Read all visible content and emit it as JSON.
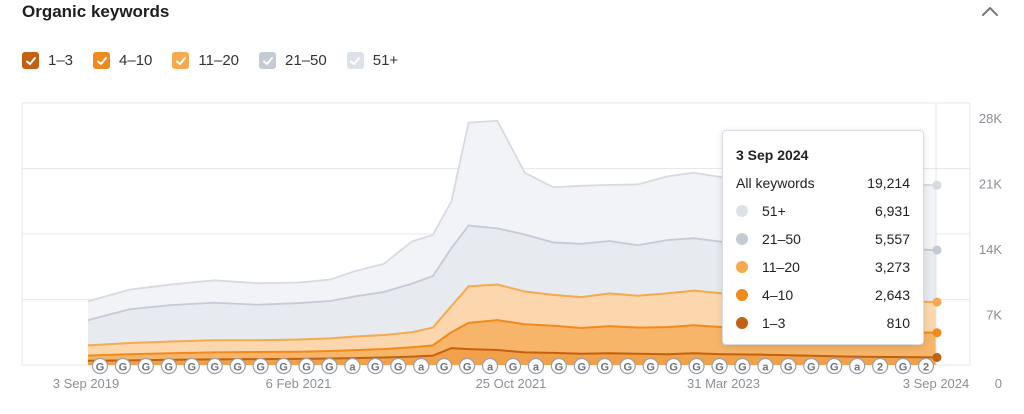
{
  "header": {
    "title": "Organic keywords"
  },
  "icons": {
    "collapse": "chevron-up-icon",
    "check": "check-icon"
  },
  "legend": [
    {
      "label": "1–3",
      "color": "#c2610f"
    },
    {
      "label": "4–10",
      "color": "#f18a1c"
    },
    {
      "label": "11–20",
      "color": "#f6a94e"
    },
    {
      "label": "21–50",
      "color": "#c4cbd5"
    },
    {
      "label": "51+",
      "color": "#dde2e8"
    }
  ],
  "tooltip": {
    "date": "3 Sep 2024",
    "total_label": "All keywords",
    "total_value": "19,214",
    "rows": [
      {
        "label": "51+",
        "value": "6,931",
        "color": "#dde2e8"
      },
      {
        "label": "21–50",
        "value": "5,557",
        "color": "#c4cbd5"
      },
      {
        "label": "11–20",
        "value": "3,273",
        "color": "#f6a94e"
      },
      {
        "label": "4–10",
        "value": "2,643",
        "color": "#f18a1c"
      },
      {
        "label": "1–3",
        "value": "810",
        "color": "#c2610f"
      }
    ]
  },
  "chart_data": {
    "type": "area",
    "stacked": true,
    "x_ticks": [
      "3 Sep 2019",
      "6 Feb 2021",
      "25 Oct 2021",
      "31 Mar 2023",
      "3 Sep 2024"
    ],
    "y_ticks": [
      "0",
      "7K",
      "14K",
      "21K",
      "28K"
    ],
    "ylim": [
      0,
      28000
    ],
    "grid": true,
    "x": [
      "2019-09-03",
      "2019-12-01",
      "2020-03-01",
      "2020-06-01",
      "2020-09-01",
      "2020-12-01",
      "2021-02-06",
      "2021-04-01",
      "2021-06-01",
      "2021-08-01",
      "2021-09-15",
      "2021-10-25",
      "2021-12-01",
      "2022-02-01",
      "2022-04-01",
      "2022-06-01",
      "2022-08-01",
      "2022-10-01",
      "2022-12-01",
      "2023-02-01",
      "2023-03-31",
      "2023-06-01",
      "2023-09-01",
      "2023-12-01",
      "2024-03-01",
      "2024-06-01",
      "2024-09-03"
    ],
    "series": [
      {
        "name": "1–3",
        "color": "#c2610f",
        "values": [
          450,
          500,
          560,
          600,
          630,
          650,
          690,
          740,
          800,
          900,
          1000,
          1800,
          1700,
          1600,
          1350,
          1300,
          1200,
          1250,
          1200,
          1150,
          1250,
          1150,
          1100,
          1000,
          900,
          850,
          810
        ]
      },
      {
        "name": "4–10",
        "values": [
          550,
          650,
          700,
          750,
          760,
          770,
          800,
          850,
          900,
          1000,
          1100,
          1700,
          2800,
          3200,
          3000,
          2900,
          2750,
          2900,
          2800,
          2900,
          3000,
          2900,
          2950,
          2900,
          2800,
          2700,
          2643
        ]
      },
      {
        "name": "11–20",
        "values": [
          1100,
          1200,
          1250,
          1300,
          1250,
          1300,
          1350,
          1450,
          1500,
          1600,
          1900,
          2800,
          3900,
          3800,
          3500,
          3300,
          3300,
          3500,
          3400,
          3600,
          3700,
          3600,
          3300,
          3400,
          3300,
          3300,
          3273
        ]
      },
      {
        "name": "21–50",
        "values": [
          2700,
          3600,
          3900,
          4000,
          3800,
          3900,
          4000,
          4300,
          4600,
          5200,
          5500,
          6200,
          6500,
          6000,
          6100,
          5600,
          5700,
          5600,
          5400,
          5700,
          5600,
          5500,
          5600,
          5500,
          5500,
          5600,
          5557
        ]
      },
      {
        "name": "51+",
        "values": [
          2000,
          2100,
          2200,
          2400,
          2300,
          2200,
          2300,
          2700,
          3000,
          4500,
          4400,
          5000,
          11000,
          11500,
          6600,
          5900,
          6200,
          6000,
          6500,
          6800,
          7000,
          6900,
          6800,
          6800,
          6900,
          6900,
          6931
        ]
      }
    ],
    "annotations": [
      "G",
      "G",
      "G",
      "G",
      "G",
      "G",
      "G",
      "G",
      "G",
      "G",
      "G",
      "a",
      "G",
      "G",
      "a",
      "G",
      "G",
      "a",
      "G",
      "a",
      "G",
      "G",
      "G",
      "G",
      "G",
      "G",
      "G",
      "G",
      "G",
      "a",
      "G",
      "G",
      "G",
      "a",
      "2",
      "G",
      "2"
    ]
  }
}
